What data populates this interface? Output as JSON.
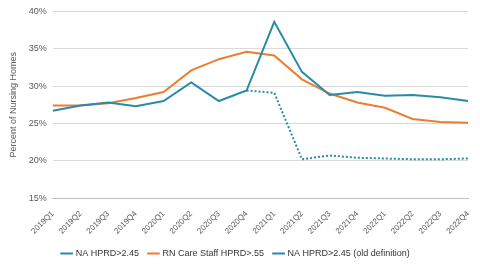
{
  "chart_data": {
    "type": "line",
    "y_label": "Percent of Nursing Homes",
    "categories": [
      "2019Q1",
      "2019Q2",
      "2019Q3",
      "2019Q4",
      "2020Q1",
      "2020Q2",
      "2020Q3",
      "2020Q4",
      "2021Q1",
      "2021Q2",
      "2021Q3",
      "2021Q4",
      "2022Q1",
      "2022Q2",
      "2022Q3",
      "2022Q4"
    ],
    "series": [
      {
        "name": "NA HPRD>2.45",
        "color": "#2a8ba6",
        "line_style": "solid",
        "values": [
          26.7,
          27.4,
          27.8,
          27.3,
          28.0,
          30.5,
          28.0,
          29.4,
          38.6,
          31.9,
          28.8,
          29.2,
          28.7,
          28.8,
          28.5,
          28.0
        ]
      },
      {
        "name": "RN Care Staff HPRD>.55",
        "color": "#ed7d31",
        "line_style": "solid",
        "values": [
          27.4,
          27.4,
          27.7,
          28.4,
          29.2,
          32.1,
          33.6,
          34.6,
          34.1,
          30.9,
          29.0,
          27.8,
          27.1,
          25.6,
          25.2,
          25.1
        ]
      },
      {
        "name": "NA HPRD>2.45 (old definition)",
        "color": "#2a8ba6",
        "line_style": "dotted",
        "values": [
          null,
          null,
          null,
          null,
          null,
          null,
          null,
          29.4,
          29.1,
          20.2,
          20.7,
          20.4,
          20.3,
          20.2,
          20.2,
          20.3
        ]
      }
    ],
    "ylim": [
      15,
      40
    ],
    "yticks": [
      {
        "value": 15,
        "label": "15%"
      },
      {
        "value": 20,
        "label": "20%"
      },
      {
        "value": 25,
        "label": "25%"
      },
      {
        "value": 30,
        "label": "30%"
      },
      {
        "value": 35,
        "label": "35%"
      },
      {
        "value": 40,
        "label": "40%"
      }
    ],
    "grid": true,
    "legend": "bottom"
  }
}
